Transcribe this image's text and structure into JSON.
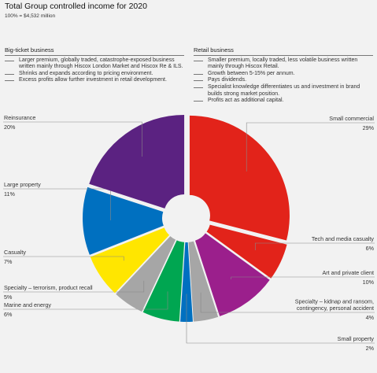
{
  "title": "Total Group controlled income for 2020",
  "subtitle": "100% = $4,532 million",
  "left_column": {
    "header": "Big-ticket business",
    "items": [
      "Larger premium, globally traded, catastrophe-exposed business written mainly through Hiscox London Market and Hiscox Re & ILS.",
      "Shrinks and expands according to pricing environment.",
      "Excess profits allow further investment in retail development."
    ]
  },
  "right_column": {
    "header": "Retail business",
    "items": [
      "Smaller premium, locally traded, less volatile business written mainly through Hiscox Retail.",
      "Growth between 5-15% per annum.",
      "Pays dividends.",
      "Specialist knowledge differentiates us and investment in brand builds strong market position.",
      "Profits act as additional capital."
    ]
  },
  "chart_data": {
    "type": "pie",
    "donut": true,
    "title": "Total Group controlled income for 2020",
    "subtitle": "100% = $4,532 million",
    "slices": [
      {
        "label": "Small commercial",
        "value": 29,
        "value_label": "29%",
        "color": "#e2231a"
      },
      {
        "label": "Tech and media casualty",
        "value": 6,
        "value_label": "6%",
        "color": "#e2231a"
      },
      {
        "label": "Art and private client",
        "value": 10,
        "value_label": "10%",
        "color": "#9b1f8c"
      },
      {
        "label": "Specialty – kidnap and ransom, contingency, personal accident",
        "value": 4,
        "value_label": "4%",
        "color": "#a6a6a6"
      },
      {
        "label": "Small property",
        "value": 2,
        "value_label": "2%",
        "color": "#0070c0"
      },
      {
        "label": "Marine and energy",
        "value": 6,
        "value_label": "6%",
        "color": "#00a651"
      },
      {
        "label": "Specialty – terrorism, product recall",
        "value": 5,
        "value_label": "5%",
        "color": "#a6a6a6"
      },
      {
        "label": "Casualty",
        "value": 7,
        "value_label": "7%",
        "color": "#ffe600"
      },
      {
        "label": "Large property",
        "value": 11,
        "value_label": "11%",
        "color": "#0070c0"
      },
      {
        "label": "Reinsurance",
        "value": 20,
        "value_label": "20%",
        "color": "#5b2281"
      }
    ]
  }
}
